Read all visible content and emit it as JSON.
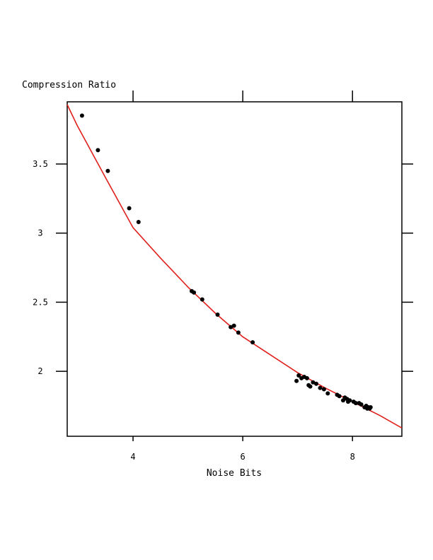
{
  "chart_data": {
    "type": "scatter",
    "title": "",
    "xlabel": "Noise Bits",
    "ylabel": "Compression Ratio",
    "xlim": [
      2.8,
      8.9
    ],
    "ylim": [
      1.53,
      3.95
    ],
    "x_ticks": [
      4,
      6,
      8
    ],
    "x_tick_labels": [
      "4",
      "6",
      "8"
    ],
    "y_ticks": [
      2,
      2.5,
      3,
      3.5
    ],
    "y_tick_labels": [
      "2",
      "2.5",
      "3",
      "3.5"
    ],
    "grid": false,
    "legend": "none",
    "colors": {
      "points": "#000000",
      "line": "#e0201c",
      "axes": "#000000"
    },
    "series": [
      {
        "type": "scatter",
        "x": [
          3.07,
          3.36,
          3.54,
          3.93,
          4.1,
          5.07,
          5.11,
          5.26,
          5.54,
          5.78,
          5.84,
          5.92,
          6.18,
          6.98,
          7.02,
          7.07,
          7.12,
          7.17,
          7.2,
          7.23,
          7.28,
          7.34,
          7.41,
          7.48,
          7.55,
          7.72,
          7.76,
          7.83,
          7.86,
          7.9,
          7.92,
          7.95,
          8.02,
          8.06,
          8.12,
          8.16,
          8.22,
          8.25,
          8.27,
          8.29,
          8.31,
          8.33
        ],
        "y": [
          3.85,
          3.6,
          3.45,
          3.18,
          3.08,
          2.58,
          2.57,
          2.52,
          2.41,
          2.32,
          2.33,
          2.28,
          2.21,
          1.93,
          1.97,
          1.95,
          1.96,
          1.95,
          1.9,
          1.89,
          1.92,
          1.91,
          1.88,
          1.87,
          1.84,
          1.83,
          1.82,
          1.79,
          1.81,
          1.8,
          1.78,
          1.79,
          1.78,
          1.77,
          1.77,
          1.76,
          1.74,
          1.75,
          1.73,
          1.74,
          1.73,
          1.74
        ]
      },
      {
        "type": "line",
        "x": [
          2.8,
          2.98,
          3.5,
          4.0,
          4.5,
          5.0,
          5.5,
          6.0,
          6.5,
          7.0,
          7.5,
          8.0,
          8.5,
          8.9
        ],
        "y": [
          3.93,
          3.78,
          3.4,
          3.04,
          2.82,
          2.61,
          2.42,
          2.25,
          2.12,
          1.99,
          1.88,
          1.78,
          1.68,
          1.59
        ]
      }
    ]
  }
}
